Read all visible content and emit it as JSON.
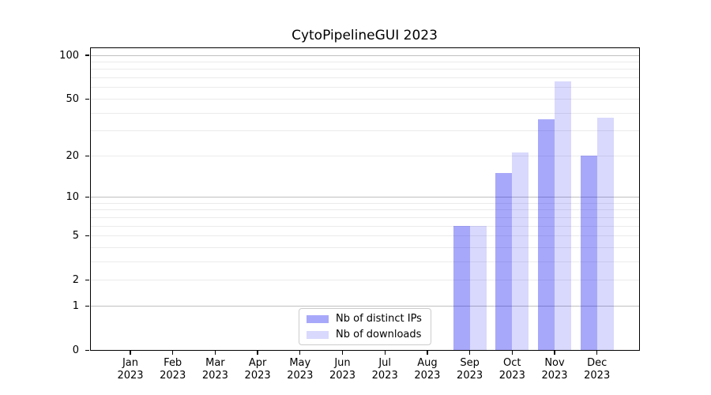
{
  "title": "CytoPipelineGUI 2023",
  "colors": {
    "bar_distinct_ips": "#A8A8FA",
    "bar_distinct_ips_rgba": "rgba(0,0,240,0.34)",
    "bar_downloads": "#D9D9FB",
    "bar_downloads_rgba": "rgba(0,0,240,0.15)",
    "grid_major": "#c0c0c0",
    "grid_minor": "#ebebeb",
    "axis_spine": "#000000",
    "background": "#ffffff",
    "text": "#000000"
  },
  "chart_data": {
    "type": "bar",
    "scale": "log1p",
    "title": "CytoPipelineGUI 2023",
    "xlabel": "",
    "ylabel": "",
    "categories": [
      {
        "month": "Jan",
        "year": "2023"
      },
      {
        "month": "Feb",
        "year": "2023"
      },
      {
        "month": "Mar",
        "year": "2023"
      },
      {
        "month": "Apr",
        "year": "2023"
      },
      {
        "month": "May",
        "year": "2023"
      },
      {
        "month": "Jun",
        "year": "2023"
      },
      {
        "month": "Jul",
        "year": "2023"
      },
      {
        "month": "Aug",
        "year": "2023"
      },
      {
        "month": "Sep",
        "year": "2023"
      },
      {
        "month": "Oct",
        "year": "2023"
      },
      {
        "month": "Nov",
        "year": "2023"
      },
      {
        "month": "Dec",
        "year": "2023"
      }
    ],
    "series": [
      {
        "name": "Nb of distinct IPs",
        "values": [
          0,
          0,
          0,
          0,
          0,
          0,
          0,
          0,
          6,
          15,
          36,
          20
        ],
        "color_hex": "#A8A8FA",
        "color_rgba": "rgba(0,0,240,0.34)"
      },
      {
        "name": "Nb of downloads",
        "values": [
          0,
          0,
          0,
          0,
          0,
          0,
          0,
          0,
          6,
          21,
          66,
          37
        ],
        "color_hex": "#D9D9FB",
        "color_rgba": "rgba(0,0,240,0.15)"
      }
    ],
    "yticks": [
      0,
      1,
      2,
      5,
      10,
      20,
      50,
      100
    ],
    "ylim": [
      0,
      113.4
    ],
    "grid_major_values": [
      1,
      10,
      100
    ],
    "grid_minor_values": [
      2,
      3,
      4,
      5,
      6,
      7,
      8,
      9,
      20,
      30,
      40,
      50,
      60,
      70,
      80,
      90
    ],
    "grid": "on",
    "legend_position": "bottom-center",
    "legend_entries": [
      "Nb of distinct IPs",
      "Nb of downloads"
    ]
  }
}
